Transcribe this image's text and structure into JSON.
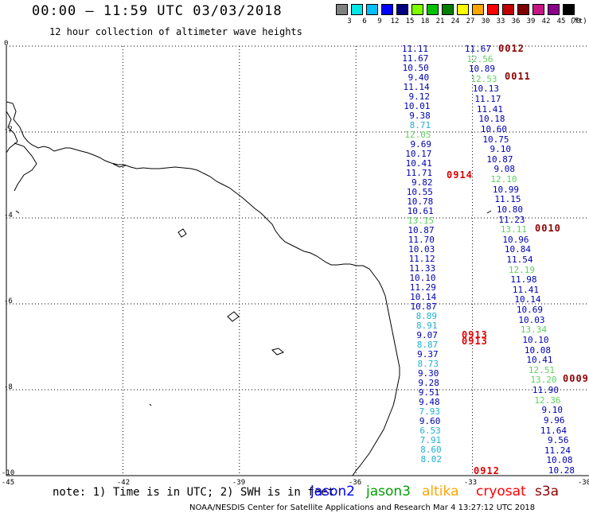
{
  "header": {
    "title": "00:00 – 11:59 UTC 03/03/2018",
    "subtitle": "12 hour collection of altimeter wave heights"
  },
  "colorbar": {
    "colors": [
      "#808080",
      "#00e5e5",
      "#00bfff",
      "#0000ff",
      "#00007f",
      "#7fff00",
      "#00c000",
      "#007f00",
      "#ffff00",
      "#ffa500",
      "#ff0000",
      "#bf0000",
      "#7f0000",
      "#c71585",
      "#8b008b",
      "#000000"
    ],
    "ticks": [
      "3",
      "6",
      "9",
      "12",
      "15",
      "18",
      "21",
      "24",
      "27",
      "30",
      "33",
      "36",
      "39",
      "42",
      "45",
      "70"
    ],
    "unit": "(ft)"
  },
  "axes": {
    "y_ticks": [
      "0",
      "-2",
      "-4",
      "-6",
      "-8",
      "-10"
    ],
    "x_ticks": [
      "-45",
      "-42",
      "-39",
      "-36",
      "-33",
      "-30"
    ],
    "lon_range": [
      -45,
      -30
    ],
    "lat_range": [
      -10,
      0
    ]
  },
  "tracks": [
    {
      "satellite": "jason2",
      "values": [
        {
          "v": "11.11",
          "c": "#0000b0"
        },
        {
          "v": "11.67",
          "c": "#0000b0"
        },
        {
          "v": "10.50",
          "c": "#0000b0"
        },
        {
          "v": "9.40",
          "c": "#0000b0"
        },
        {
          "v": "11.14",
          "c": "#0000b0"
        },
        {
          "v": "9.12",
          "c": "#0000b0"
        },
        {
          "v": "10.01",
          "c": "#0000b0"
        },
        {
          "v": "9.38",
          "c": "#0000b0"
        },
        {
          "v": "8.71",
          "c": "#20b0d0"
        },
        {
          "v": "12.05",
          "c": "#60d060"
        },
        {
          "v": "9.69",
          "c": "#0000b0"
        },
        {
          "v": "10.17",
          "c": "#0000b0"
        },
        {
          "v": "10.41",
          "c": "#0000b0"
        },
        {
          "v": "11.71",
          "c": "#0000b0"
        },
        {
          "v": "9.82",
          "c": "#0000b0"
        },
        {
          "v": "10.55",
          "c": "#0000b0"
        },
        {
          "v": "10.78",
          "c": "#0000b0"
        },
        {
          "v": "10.61",
          "c": "#0000b0"
        },
        {
          "v": "13.15",
          "c": "#60d060"
        },
        {
          "v": "10.87",
          "c": "#0000b0"
        },
        {
          "v": "11.70",
          "c": "#0000b0"
        },
        {
          "v": "10.03",
          "c": "#0000b0"
        },
        {
          "v": "11.12",
          "c": "#0000b0"
        },
        {
          "v": "11.33",
          "c": "#0000b0"
        },
        {
          "v": "10.10",
          "c": "#0000b0"
        },
        {
          "v": "11.29",
          "c": "#0000b0"
        },
        {
          "v": "10.14",
          "c": "#0000b0"
        },
        {
          "v": "10.87",
          "c": "#0000b0"
        },
        {
          "v": "8.89",
          "c": "#20b0d0"
        },
        {
          "v": "8.91",
          "c": "#20b0d0"
        },
        {
          "v": "9.07",
          "c": "#0000b0"
        },
        {
          "v": "8.87",
          "c": "#20b0d0"
        },
        {
          "v": "9.37",
          "c": "#0000b0"
        },
        {
          "v": "8.73",
          "c": "#20b0d0"
        },
        {
          "v": "9.30",
          "c": "#0000b0"
        },
        {
          "v": "9.28",
          "c": "#0000b0"
        },
        {
          "v": "9.51",
          "c": "#0000b0"
        },
        {
          "v": "9.48",
          "c": "#0000b0"
        },
        {
          "v": "7.93",
          "c": "#20b0d0"
        },
        {
          "v": "9.60",
          "c": "#0000b0"
        },
        {
          "v": "6.53",
          "c": "#20b0d0"
        },
        {
          "v": "7.91",
          "c": "#20b0d0"
        },
        {
          "v": "8.60",
          "c": "#20b0d0"
        },
        {
          "v": "8.02",
          "c": "#20b0d0"
        }
      ]
    },
    {
      "satellite": "cryosat-track",
      "values": [
        {
          "v": "11.67",
          "c": "#0000b0"
        },
        {
          "v": "12.56",
          "c": "#60d060"
        },
        {
          "v": "10.89",
          "c": "#0000b0"
        },
        {
          "v": "12.53",
          "c": "#60d060"
        },
        {
          "v": "10.13",
          "c": "#0000b0"
        },
        {
          "v": "11.17",
          "c": "#0000b0"
        },
        {
          "v": "11.41",
          "c": "#0000b0"
        },
        {
          "v": "10.18",
          "c": "#0000b0"
        },
        {
          "v": "10.60",
          "c": "#0000b0"
        },
        {
          "v": "10.75",
          "c": "#0000b0"
        },
        {
          "v": "9.10",
          "c": "#0000b0"
        },
        {
          "v": "10.87",
          "c": "#0000b0"
        },
        {
          "v": "9.08",
          "c": "#0000b0"
        },
        {
          "v": "12.10",
          "c": "#60d060"
        },
        {
          "v": "10.99",
          "c": "#0000b0"
        },
        {
          "v": "11.15",
          "c": "#0000b0"
        },
        {
          "v": "10.80",
          "c": "#0000b0"
        },
        {
          "v": "11.23",
          "c": "#0000b0"
        },
        {
          "v": "13.11",
          "c": "#60d060"
        },
        {
          "v": "10.96",
          "c": "#0000b0"
        },
        {
          "v": "10.84",
          "c": "#0000b0"
        },
        {
          "v": "11.54",
          "c": "#0000b0"
        },
        {
          "v": "12.19",
          "c": "#60d060"
        },
        {
          "v": "11.98",
          "c": "#0000b0"
        },
        {
          "v": "11.41",
          "c": "#0000b0"
        },
        {
          "v": "10.14",
          "c": "#0000b0"
        },
        {
          "v": "10.69",
          "c": "#0000b0"
        },
        {
          "v": "10.03",
          "c": "#0000b0"
        },
        {
          "v": "13.34",
          "c": "#60d060"
        },
        {
          "v": "10.10",
          "c": "#0000b0"
        },
        {
          "v": "10.08",
          "c": "#0000b0"
        },
        {
          "v": "10.41",
          "c": "#0000b0"
        },
        {
          "v": "12.51",
          "c": "#60d060"
        },
        {
          "v": "13.20",
          "c": "#60d060"
        },
        {
          "v": "11.90",
          "c": "#0000b0"
        },
        {
          "v": "12.36",
          "c": "#60d060"
        },
        {
          "v": "9.10",
          "c": "#0000b0"
        },
        {
          "v": "9.96",
          "c": "#0000b0"
        },
        {
          "v": "11.64",
          "c": "#0000b0"
        },
        {
          "v": "9.56",
          "c": "#0000b0"
        },
        {
          "v": "11.24",
          "c": "#0000b0"
        },
        {
          "v": "10.08",
          "c": "#0000b0"
        },
        {
          "v": "10.28",
          "c": "#0000b0"
        }
      ]
    }
  ],
  "time_labels": [
    {
      "t": "0012",
      "c": "#8b0000"
    },
    {
      "t": "0011",
      "c": "#8b0000"
    },
    {
      "t": "0914",
      "c": "#e00000"
    },
    {
      "t": "0010",
      "c": "#8b0000"
    },
    {
      "t": "0913",
      "c": "#e00000"
    },
    {
      "t": "0913",
      "c": "#e00000"
    },
    {
      "t": "0009",
      "c": "#8b0000"
    },
    {
      "t": "0912",
      "c": "#e00000"
    }
  ],
  "footer": {
    "note": "note: 1) Time is in UTC; 2) SWH is in feet",
    "legend": [
      {
        "name": "jason2",
        "color": "#0000ff"
      },
      {
        "name": "jason3",
        "color": "#00a000"
      },
      {
        "name": "altika",
        "color": "#ffa500"
      },
      {
        "name": "cryosat",
        "color": "#ff0000"
      },
      {
        "name": "s3a",
        "color": "#8b0000"
      }
    ],
    "credit": "NOAA/NESDIS Center for Satellite Applications and Research    Mar  4 13:27:12 UTC 2018"
  }
}
